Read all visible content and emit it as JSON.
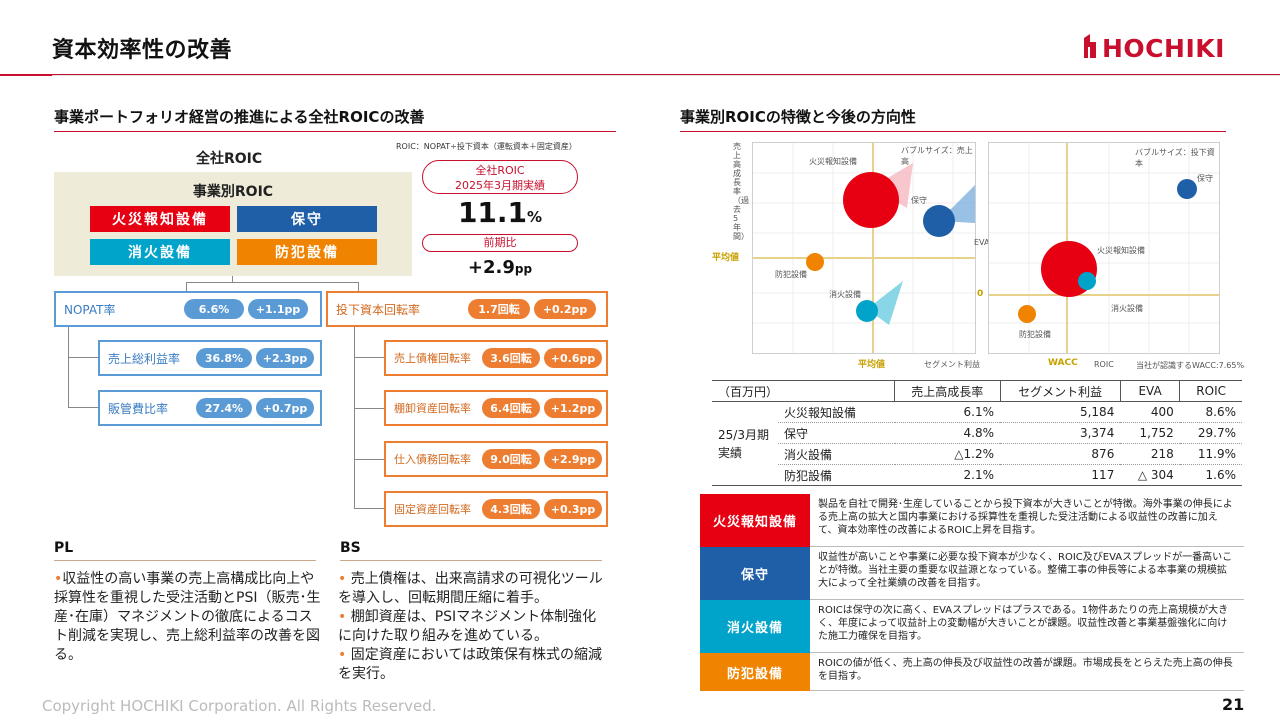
{
  "header": {
    "title": "資本効率性の改善",
    "logo_text": "HOCHIKI"
  },
  "left": {
    "section_title": "事業ポートフォリオ経営の推進による全社ROICの改善",
    "formula": "ROIC：NOPAT÷投下資本（運転資本＋固定資産）",
    "zensha_label": "全社ROIC",
    "biz_title": "事業別ROIC",
    "segments": [
      "火災報知設備",
      "保守",
      "消火設備",
      "防犯設備"
    ],
    "roic_label_line1": "全社ROIC",
    "roic_label_line2": "2025年3月期実績",
    "roic_value": "11.1",
    "roic_unit": "%",
    "prev_label": "前期比",
    "prev_value": "+2.9",
    "prev_unit": "pp",
    "nopat": {
      "label": "NOPAT率",
      "value": "6.6%",
      "delta": "+1.1pp"
    },
    "invest": {
      "label": "投下資本回転率",
      "value": "1.7回転",
      "delta": "+0.2pp"
    },
    "pl_items": [
      {
        "label": "売上総利益率",
        "value": "36.8%",
        "delta": "+2.3pp"
      },
      {
        "label": "販管費比率",
        "value": "27.4%",
        "delta": "+0.7pp"
      }
    ],
    "bs_items": [
      {
        "label": "売上債権回転率",
        "value": "3.6回転",
        "delta": "+0.6pp"
      },
      {
        "label": "棚卸資産回転率",
        "value": "6.4回転",
        "delta": "+1.2pp"
      },
      {
        "label": "仕入債務回転率",
        "value": "9.0回転",
        "delta": "+2.9pp"
      },
      {
        "label": "固定資産回転率",
        "value": "4.3回転",
        "delta": "+0.3pp"
      }
    ],
    "pl_head": "PL",
    "pl_text": "収益性の高い事業の売上高構成比向上や採算性を重視した受注活動とPSI（販売･生産･在庫）マネジメントの徹底によるコスト削減を実現し、売上総利益率の改善を図る。",
    "bs_head": "BS",
    "bs_bullets": [
      "売上債権は、出来高請求の可視化ツールを導入し、回転期間圧縮に着手。",
      "棚卸資産は、PSIマネジメント体制強化に向けた取り組みを進めている。",
      "固定資産においては政策保有株式の縮減を実行。"
    ]
  },
  "right": {
    "section_title": "事業別ROICの特徴と今後の方向性",
    "chart1": {
      "ylabel": "売上高成長率（過去5年間）",
      "xlabel": "セグメント利益",
      "bubble_note": "バブルサイズ：売上高",
      "avg_label_y": "平均値",
      "avg_label_x": "平均値",
      "labels": [
        "火災報知設備",
        "保守",
        "防犯設備",
        "消火設備"
      ]
    },
    "chart2": {
      "ylabel": "EVA",
      "xlabel": "ROIC",
      "bubble_note": "バブルサイズ：投下資本",
      "zero_label": "0",
      "wacc_label": "WACC",
      "wacc_note": "当社が認識するWACC:7.65%",
      "labels": [
        "保守",
        "火災報知設備",
        "消火設備",
        "防犯設備"
      ]
    },
    "table": {
      "unit": "（百万円）",
      "headers": [
        "売上高成長率",
        "セグメント利益",
        "EVA",
        "ROIC"
      ],
      "period_line1": "25/3月期",
      "period_line2": "実績",
      "rows": [
        {
          "name": "火災報知設備",
          "growth": "6.1%",
          "profit": "5,184",
          "eva": "400",
          "roic": "8.6%"
        },
        {
          "name": "保守",
          "growth": "4.8%",
          "profit": "3,374",
          "eva": "1,752",
          "roic": "29.7%"
        },
        {
          "name": "消火設備",
          "growth": "△1.2%",
          "profit": "876",
          "eva": "218",
          "roic": "11.9%"
        },
        {
          "name": "防犯設備",
          "growth": "2.1%",
          "profit": "117",
          "eva": "△ 304",
          "roic": "1.6%"
        }
      ]
    },
    "directions": [
      {
        "tag": "火災報知設備",
        "text": "製品を自社で開発･生産していることから投下資本が大きいことが特徴。海外事業の伸長による売上高の拡大と国内事業における採算性を重視した受注活動による収益性の改善に加えて、資本効率性の改善によるROIC上昇を目指す。"
      },
      {
        "tag": "保守",
        "text": "収益性が高いことや事業に必要な投下資本が少なく、ROIC及びEVAスプレッドが一番高いことが特徴。当社主要の重要な収益源となっている。整備工事の伸長等による本事業の規模拡大によって全社業績の改善を目指す。"
      },
      {
        "tag": "消火設備",
        "text": "ROICは保守の次に高く、EVAスプレッドはプラスである。1物件あたりの売上高規模が大きく、年度によって収益計上の変動幅が大きいことが課題。収益性改善と事業基盤強化に向けた施工力確保を目指す。"
      },
      {
        "tag": "防犯設備",
        "text": "ROICの値が低く、売上高の伸長及び収益性の改善が課題。市場成長をとらえた売上高の伸長を目指す。"
      }
    ]
  },
  "colors": {
    "red": "#e60012",
    "blue": "#1f5fa8",
    "cyan": "#00a3c9",
    "orange": "#f08300",
    "accent": "#c8102e"
  },
  "footer": {
    "copyright": "Copyright HOCHIKI Corporation. All Rights Reserved.",
    "page": "21"
  }
}
